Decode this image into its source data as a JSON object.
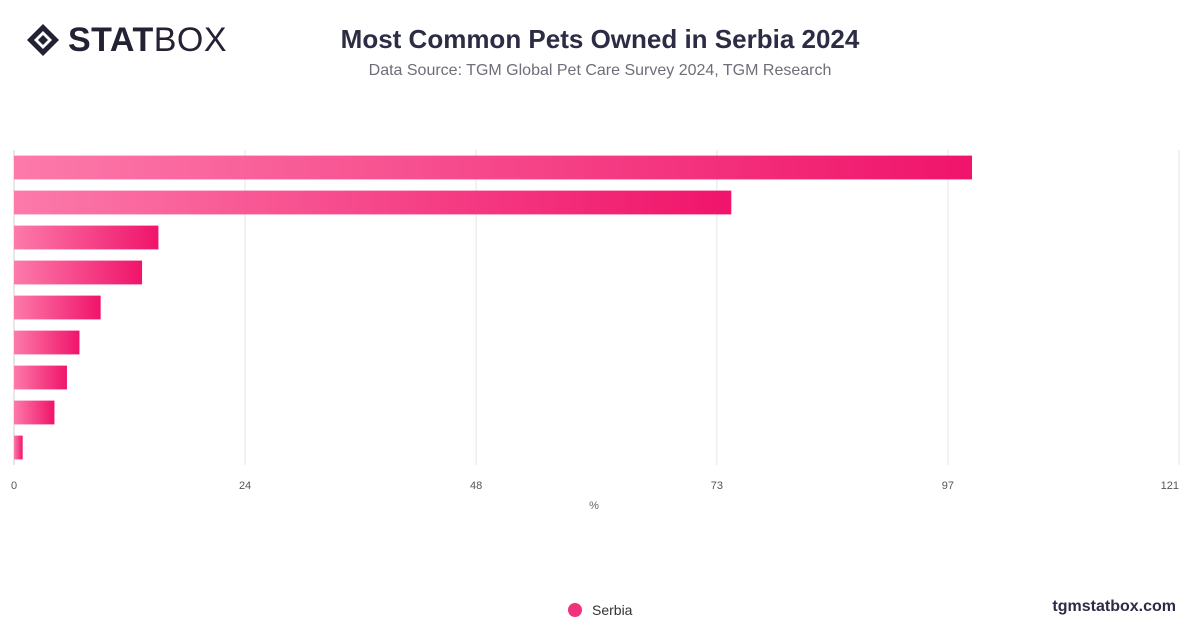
{
  "brand": {
    "bold": "STAT",
    "light": "BOX"
  },
  "title": "Most Common Pets Owned in Serbia 2024",
  "subtitle": "Data Source: TGM Global Pet Care Survey 2024, TGM Research",
  "legend": {
    "series_name": "Serbia"
  },
  "footer": "tgmstatbox.com",
  "colors": {
    "bar_light": "#fc7aaa",
    "bar_dark": "#f0146a",
    "grid": "#e4e4e4",
    "text": "#2c2c44"
  },
  "chart_data": {
    "type": "bar",
    "orientation": "horizontal",
    "title": "Most Common Pets Owned in Serbia 2024",
    "xlabel": "%",
    "ylabel": "",
    "x_ticks": [
      0,
      24,
      48,
      73,
      97,
      121
    ],
    "xlim": [
      0,
      121
    ],
    "grid": true,
    "legend_position": "bottom-center",
    "categories": [
      "",
      "",
      "",
      "",
      "",
      "",
      "",
      "",
      ""
    ],
    "series": [
      {
        "name": "Serbia",
        "values": [
          99.5,
          74.5,
          15,
          13.3,
          9,
          6.8,
          5.5,
          4.2,
          0.9
        ]
      }
    ]
  }
}
